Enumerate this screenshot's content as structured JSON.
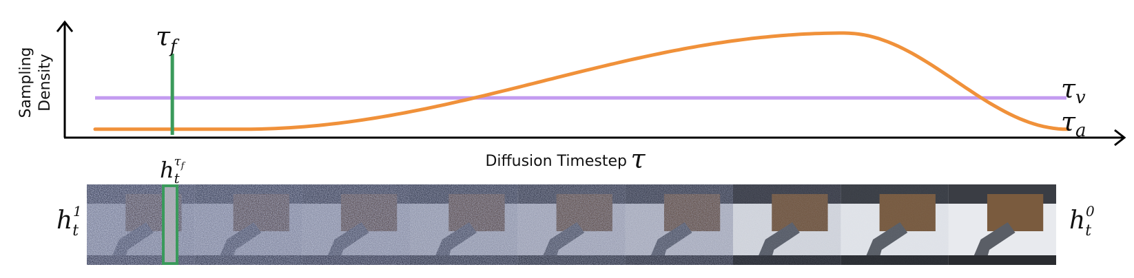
{
  "axes": {
    "y_label_line1": "Sampling",
    "y_label_line2": "Density",
    "x_label": "Diffusion Timestep"
  },
  "symbols": {
    "tau": "τ",
    "tau_f_sub": "f",
    "tau_v_sub": "v",
    "tau_a_sub": "a",
    "h": "h",
    "h_sub": "t",
    "h_left_sup": "1",
    "h_right_sup": "0",
    "h_f_sup_tau": "τ",
    "h_f_sup_sub": "f"
  },
  "colors": {
    "axis": "#000000",
    "tau_f_line": "#3a9a5b",
    "tau_v_line": "#c39bf0",
    "tau_a_curve": "#f0913a",
    "frame_highlight": "#3a9a5b"
  },
  "curves": {
    "tau_f_position": 0.078,
    "tau_v_level": 0.38,
    "tau_a_peak_position": 0.77,
    "tau_a_min_level": 0.08
  },
  "frames": {
    "count": 9,
    "noise_levels": [
      1.0,
      0.92,
      0.84,
      0.76,
      0.66,
      0.55,
      0.18,
      0.06,
      0.0
    ]
  }
}
